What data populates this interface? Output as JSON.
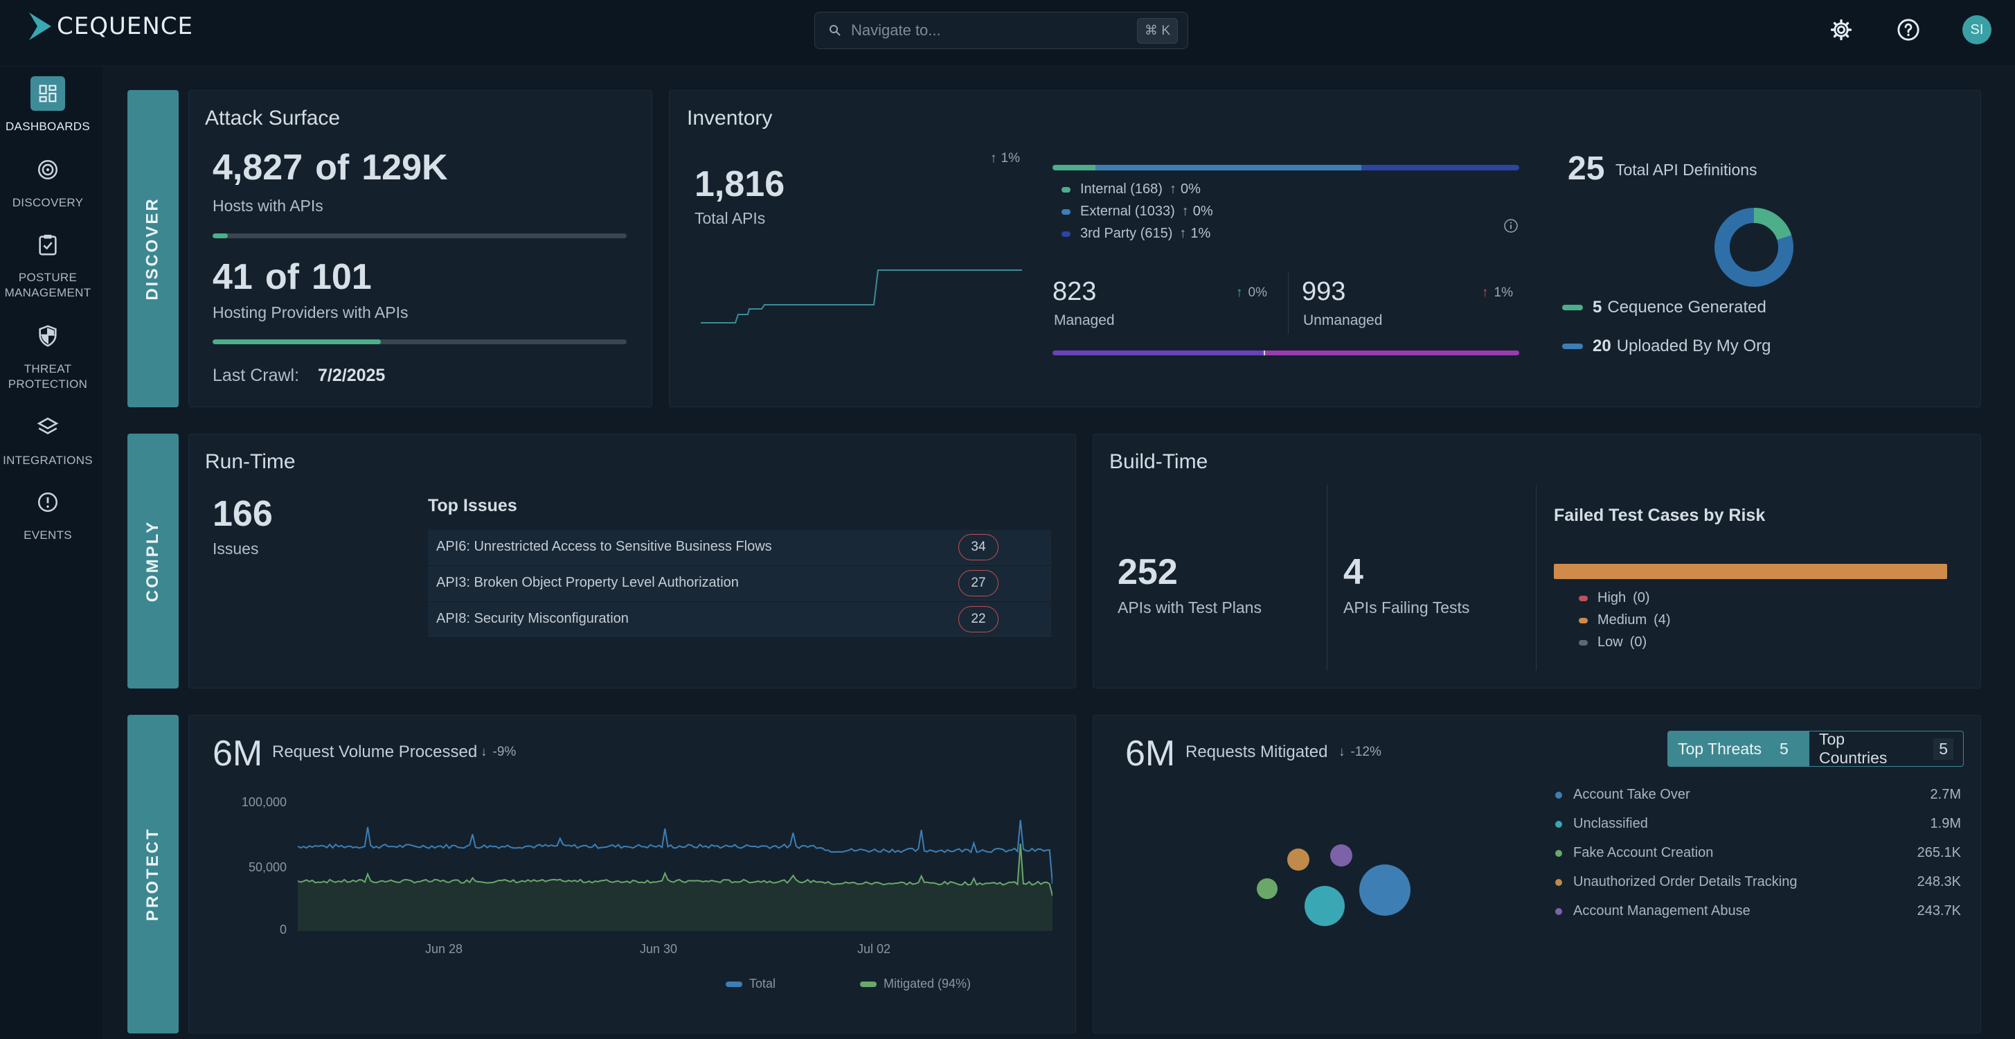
{
  "app": {
    "name": "CEQUENCE"
  },
  "search": {
    "placeholder": "Navigate to...",
    "shortcut": "⌘ K"
  },
  "header": {
    "avatar_initials": "SI"
  },
  "sidebar": {
    "items": [
      {
        "label": "DASHBOARDS",
        "icon": "dashboard-icon",
        "active": true
      },
      {
        "label": "DISCOVERY",
        "icon": "radar-icon"
      },
      {
        "label": "POSTURE MANAGEMENT",
        "icon": "clipboard-check-icon"
      },
      {
        "label": "THREAT PROTECTION",
        "icon": "shield-icon"
      },
      {
        "label": "INTEGRATIONS",
        "icon": "layers-icon"
      },
      {
        "label": "EVENTS",
        "icon": "alert-circle-icon"
      }
    ]
  },
  "sections": {
    "discover": "DISCOVER",
    "comply": "COMPLY",
    "protect": "PROTECT"
  },
  "attack_surface": {
    "title": "Attack Surface",
    "hosts_count": "4,827",
    "of": "of",
    "hosts_total": "129K",
    "hosts_label": "Hosts with APIs",
    "hosts_fraction": 0.037,
    "providers_count": "41",
    "providers_total": "101",
    "providers_label": "Hosting Providers with APIs",
    "providers_fraction": 0.406,
    "last_crawl_label": "Last Crawl:",
    "last_crawl_value": "7/2/2025"
  },
  "inventory": {
    "title": "Inventory",
    "total": "1,816",
    "total_label": "Total APIs",
    "total_change": "1%",
    "breakdown": [
      {
        "label": "Internal (168)",
        "change": "0%",
        "color": "#4caf8a",
        "value": 168
      },
      {
        "label": "External (1033)",
        "change": "0%",
        "color": "#3d7fb5",
        "value": 1033
      },
      {
        "label": "3rd Party (615)",
        "change": "1%",
        "color": "#2b45a0",
        "value": 615
      }
    ],
    "managed": "823",
    "managed_label": "Managed",
    "managed_change": "0%",
    "unmanaged": "993",
    "unmanaged_label": "Unmanaged",
    "unmanaged_change": "1%",
    "definitions_count": "25",
    "definitions_label": "Total API Definitions",
    "generated_count": "5",
    "generated_label": "Cequence Generated",
    "uploaded_count": "20",
    "uploaded_label": "Uploaded By My Org"
  },
  "runtime": {
    "title": "Run-Time",
    "issues_count": "166",
    "issues_label": "Issues",
    "top_issues_title": "Top Issues",
    "issues": [
      {
        "name": "API6: Unrestricted Access to Sensitive Business Flows",
        "count": "34"
      },
      {
        "name": "API3: Broken Object Property Level Authorization",
        "count": "27"
      },
      {
        "name": "API8: Security Misconfiguration",
        "count": "22"
      }
    ]
  },
  "buildtime": {
    "title": "Build-Time",
    "test_plans_count": "252",
    "test_plans_label": "APIs with Test Plans",
    "failing_count": "4",
    "failing_label": "APIs Failing Tests",
    "risk_title": "Failed Test Cases by Risk",
    "risks": [
      {
        "label": "High",
        "count": "(0)",
        "color": "#c0505a"
      },
      {
        "label": "Medium",
        "count": "(4)",
        "color": "#d08a4a"
      },
      {
        "label": "Low",
        "count": "(0)",
        "color": "#5b6875"
      }
    ]
  },
  "request_volume": {
    "value": "6M",
    "label": "Request Volume Processed",
    "change": "-9%",
    "legend_total": "Total",
    "legend_mitigated": "Mitigated (94%)"
  },
  "chart_data": {
    "type": "area",
    "x": [
      "Jun 28",
      "Jun 30",
      "Jul 02"
    ],
    "yticks": [
      "100,000",
      "50,000",
      "0"
    ],
    "ylim": [
      0,
      100000
    ],
    "series": [
      {
        "name": "Total",
        "color": "#3d7fb5",
        "approx_level": 63000
      },
      {
        "name": "Mitigated (94%)",
        "color": "#6aa86a",
        "approx_level": 37000
      }
    ]
  },
  "mitigated": {
    "value": "6M",
    "label": "Requests Mitigated",
    "change": "-12%",
    "tab_threats": "Top Threats",
    "tab_threats_count": "5",
    "tab_countries": "Top Countries",
    "tab_countries_count": "5",
    "threats": [
      {
        "name": "Account Take Over",
        "value": "2.7M",
        "color": "#3d7fb5"
      },
      {
        "name": "Unclassified",
        "value": "1.9M",
        "color": "#3aa7b5"
      },
      {
        "name": "Fake Account Creation",
        "value": "265.1K",
        "color": "#6aa86a"
      },
      {
        "name": "Unauthorized Order Details Tracking",
        "value": "248.3K",
        "color": "#c08a4a"
      },
      {
        "name": "Account Management Abuse",
        "value": "243.7K",
        "color": "#7d62a8"
      }
    ]
  }
}
